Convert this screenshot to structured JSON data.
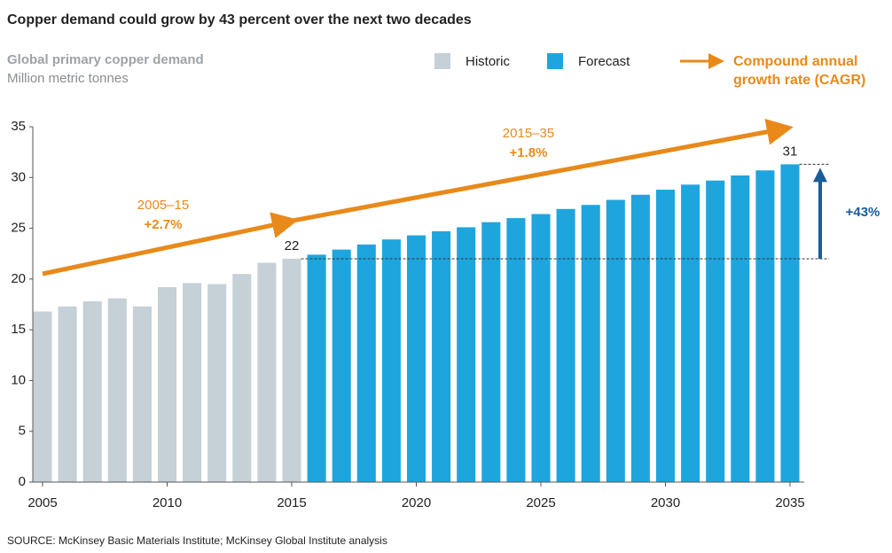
{
  "chart_data": {
    "type": "bar",
    "title": "Copper demand could grow by 43 percent over the next two decades",
    "subtitle": "Global primary copper demand",
    "ylabel": "Million metric tonnes",
    "x": [
      2005,
      2006,
      2007,
      2008,
      2009,
      2010,
      2011,
      2012,
      2013,
      2014,
      2015,
      2016,
      2017,
      2018,
      2019,
      2020,
      2021,
      2022,
      2023,
      2024,
      2025,
      2026,
      2027,
      2028,
      2029,
      2030,
      2031,
      2032,
      2033,
      2034,
      2035
    ],
    "xticks": [
      2005,
      2010,
      2015,
      2020,
      2025,
      2030,
      2035
    ],
    "xlim": [
      2005,
      2035
    ],
    "ylim": [
      0,
      35
    ],
    "yticks": [
      0,
      5,
      10,
      15,
      20,
      25,
      30,
      35
    ],
    "series": [
      {
        "name": "Historic",
        "color": "#c5d0d7",
        "values": [
          16.8,
          17.3,
          17.8,
          18.1,
          17.3,
          19.2,
          19.6,
          19.5,
          20.5,
          21.6,
          22.0,
          null,
          null,
          null,
          null,
          null,
          null,
          null,
          null,
          null,
          null,
          null,
          null,
          null,
          null,
          null,
          null,
          null,
          null,
          null,
          null
        ],
        "value_labels": [
          null,
          null,
          null,
          null,
          null,
          null,
          null,
          null,
          null,
          null,
          "22",
          null,
          null,
          null,
          null,
          null,
          null,
          null,
          null,
          null,
          null,
          null,
          null,
          null,
          null,
          null,
          null,
          null,
          null,
          null,
          null
        ]
      },
      {
        "name": "Forecast",
        "color": "#1fa5de",
        "values": [
          null,
          null,
          null,
          null,
          null,
          null,
          null,
          null,
          null,
          null,
          null,
          22.4,
          22.9,
          23.4,
          23.9,
          24.3,
          24.7,
          25.1,
          25.6,
          26.0,
          26.4,
          26.9,
          27.3,
          27.8,
          28.3,
          28.8,
          29.3,
          29.7,
          30.2,
          30.7,
          31.3
        ],
        "value_labels": [
          null,
          null,
          null,
          null,
          null,
          null,
          null,
          null,
          null,
          null,
          null,
          null,
          null,
          null,
          null,
          null,
          null,
          null,
          null,
          null,
          null,
          null,
          null,
          null,
          null,
          null,
          null,
          null,
          null,
          null,
          "31"
        ]
      }
    ],
    "cagr_legend": [
      "Compound annual",
      "growth rate (CAGR)"
    ],
    "annotations": {
      "cagr_2005_15": {
        "period": "2005–15",
        "rate": "+2.7%"
      },
      "cagr_2015_35": {
        "period": "2015–35",
        "rate": "+1.8%"
      },
      "growth": "+43%"
    },
    "source": "SOURCE: McKinsey Basic Materials Institute; McKinsey Global Institute analysis"
  }
}
